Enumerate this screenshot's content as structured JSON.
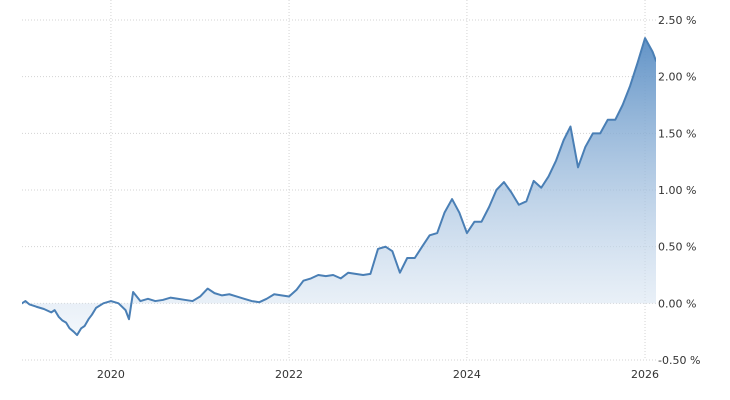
{
  "chart_data": {
    "type": "area",
    "x_axis": {
      "type": "date",
      "range": [
        "2019-01-01",
        "2026-02-15"
      ],
      "ticks": [
        {
          "value": "2020-01-01",
          "label": "2020"
        },
        {
          "value": "2022-01-01",
          "label": "2022"
        },
        {
          "value": "2024-01-01",
          "label": "2024"
        },
        {
          "value": "2026-01-01",
          "label": "2026"
        }
      ]
    },
    "y_axis": {
      "position": "right",
      "range": [
        -0.5,
        2.5
      ],
      "ticks": [
        {
          "value": 2.5,
          "label": "2.50 %"
        },
        {
          "value": 2.0,
          "label": "2.00 %"
        },
        {
          "value": 1.5,
          "label": "1.50 %"
        },
        {
          "value": 1.0,
          "label": "1.00 %"
        },
        {
          "value": 0.5,
          "label": "0.50 %"
        },
        {
          "value": 0.0,
          "label": "0.00 %"
        },
        {
          "value": -0.5,
          "label": "-0.50 %"
        }
      ]
    },
    "grid": true,
    "legend": "none",
    "baseline": 0,
    "colors": {
      "line": "#4a7fb5",
      "fill_top": "#5a8ec4",
      "fill_bottom": "#e9f0f8",
      "grid": "#d3d3d3",
      "text": "#333333"
    },
    "series": [
      {
        "points": [
          [
            "2019-01-01",
            0.0
          ],
          [
            "2019-01-15",
            0.02
          ],
          [
            "2019-02-01",
            -0.01
          ],
          [
            "2019-03-01",
            -0.03
          ],
          [
            "2019-04-01",
            -0.05
          ],
          [
            "2019-05-01",
            -0.08
          ],
          [
            "2019-05-15",
            -0.06
          ],
          [
            "2019-06-01",
            -0.12
          ],
          [
            "2019-06-15",
            -0.15
          ],
          [
            "2019-07-01",
            -0.17
          ],
          [
            "2019-07-15",
            -0.22
          ],
          [
            "2019-08-01",
            -0.25
          ],
          [
            "2019-08-15",
            -0.28
          ],
          [
            "2019-09-01",
            -0.22
          ],
          [
            "2019-09-15",
            -0.2
          ],
          [
            "2019-10-01",
            -0.14
          ],
          [
            "2019-10-15",
            -0.1
          ],
          [
            "2019-11-01",
            -0.04
          ],
          [
            "2019-12-01",
            0.0
          ],
          [
            "2020-01-01",
            0.02
          ],
          [
            "2020-02-01",
            0.0
          ],
          [
            "2020-03-01",
            -0.06
          ],
          [
            "2020-03-15",
            -0.14
          ],
          [
            "2020-04-01",
            0.1
          ],
          [
            "2020-05-01",
            0.02
          ],
          [
            "2020-06-01",
            0.04
          ],
          [
            "2020-07-01",
            0.02
          ],
          [
            "2020-08-01",
            0.03
          ],
          [
            "2020-09-01",
            0.05
          ],
          [
            "2020-10-01",
            0.04
          ],
          [
            "2020-11-01",
            0.03
          ],
          [
            "2020-12-01",
            0.02
          ],
          [
            "2021-01-01",
            0.06
          ],
          [
            "2021-02-01",
            0.13
          ],
          [
            "2021-03-01",
            0.09
          ],
          [
            "2021-04-01",
            0.07
          ],
          [
            "2021-05-01",
            0.08
          ],
          [
            "2021-06-01",
            0.06
          ],
          [
            "2021-07-01",
            0.04
          ],
          [
            "2021-08-01",
            0.02
          ],
          [
            "2021-09-01",
            0.01
          ],
          [
            "2021-10-01",
            0.04
          ],
          [
            "2021-11-01",
            0.08
          ],
          [
            "2021-12-01",
            0.07
          ],
          [
            "2022-01-01",
            0.06
          ],
          [
            "2022-02-01",
            0.12
          ],
          [
            "2022-03-01",
            0.2
          ],
          [
            "2022-04-01",
            0.22
          ],
          [
            "2022-05-01",
            0.25
          ],
          [
            "2022-06-01",
            0.24
          ],
          [
            "2022-07-01",
            0.25
          ],
          [
            "2022-08-01",
            0.22
          ],
          [
            "2022-09-01",
            0.27
          ],
          [
            "2022-10-01",
            0.26
          ],
          [
            "2022-11-01",
            0.25
          ],
          [
            "2022-12-01",
            0.26
          ],
          [
            "2023-01-01",
            0.48
          ],
          [
            "2023-02-01",
            0.5
          ],
          [
            "2023-03-01",
            0.46
          ],
          [
            "2023-04-01",
            0.27
          ],
          [
            "2023-05-01",
            0.4
          ],
          [
            "2023-06-01",
            0.4
          ],
          [
            "2023-07-01",
            0.5
          ],
          [
            "2023-08-01",
            0.6
          ],
          [
            "2023-09-01",
            0.62
          ],
          [
            "2023-10-01",
            0.8
          ],
          [
            "2023-11-01",
            0.92
          ],
          [
            "2023-12-01",
            0.8
          ],
          [
            "2024-01-01",
            0.62
          ],
          [
            "2024-02-01",
            0.72
          ],
          [
            "2024-03-01",
            0.72
          ],
          [
            "2024-04-01",
            0.85
          ],
          [
            "2024-05-01",
            1.0
          ],
          [
            "2024-06-01",
            1.07
          ],
          [
            "2024-07-01",
            0.98
          ],
          [
            "2024-08-01",
            0.87
          ],
          [
            "2024-09-01",
            0.9
          ],
          [
            "2024-10-01",
            1.08
          ],
          [
            "2024-11-01",
            1.02
          ],
          [
            "2024-12-01",
            1.12
          ],
          [
            "2025-01-01",
            1.26
          ],
          [
            "2025-02-01",
            1.44
          ],
          [
            "2025-03-01",
            1.56
          ],
          [
            "2025-04-01",
            1.2
          ],
          [
            "2025-05-01",
            1.38
          ],
          [
            "2025-06-01",
            1.5
          ],
          [
            "2025-07-01",
            1.5
          ],
          [
            "2025-08-01",
            1.62
          ],
          [
            "2025-09-01",
            1.62
          ],
          [
            "2025-10-01",
            1.75
          ],
          [
            "2025-11-01",
            1.92
          ],
          [
            "2025-12-01",
            2.12
          ],
          [
            "2026-01-01",
            2.34
          ],
          [
            "2026-02-01",
            2.22
          ],
          [
            "2026-02-15",
            2.14
          ]
        ]
      }
    ]
  }
}
